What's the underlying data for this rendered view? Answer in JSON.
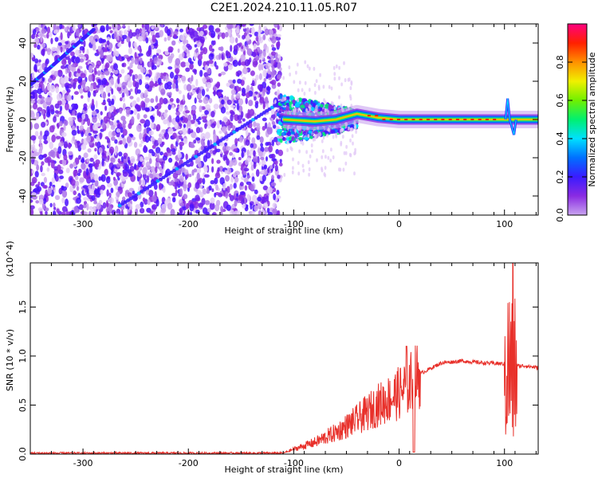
{
  "title": "C2E1.2024.210.11.05.R07",
  "colors": {
    "snr_line": "#e8302a",
    "frame": "#000000"
  },
  "chart_data": [
    {
      "type": "heatmap",
      "xlabel": "Height of straight line (km)",
      "ylabel": "Frequency (Hz)",
      "xlim": [
        -350,
        132
      ],
      "ylim": [
        -50,
        50
      ],
      "xticks": [
        -300,
        -200,
        -100,
        0,
        100
      ],
      "yticks": [
        -40,
        -20,
        0,
        20,
        40
      ],
      "colorbar": {
        "label": "Normalized spectral amplitude",
        "range": [
          0.0,
          1.0
        ],
        "ticks": [
          0.0,
          0.2,
          0.4,
          0.6,
          0.8
        ],
        "tick_labels": [
          "0.0",
          "0.2",
          "0.4",
          "0.6",
          "0.8"
        ]
      },
      "dominant_track": [
        {
          "x": -110,
          "y": 0
        },
        {
          "x": -80,
          "y": -1
        },
        {
          "x": -60,
          "y": 0
        },
        {
          "x": -40,
          "y": 3
        },
        {
          "x": -20,
          "y": 1
        },
        {
          "x": 0,
          "y": 0
        },
        {
          "x": 50,
          "y": 0
        },
        {
          "x": 100,
          "y": 0
        },
        {
          "x": 132,
          "y": 0
        }
      ],
      "diagonal_tracks": [
        {
          "from": {
            "x": -350,
            "y": 18
          },
          "to": {
            "x": -290,
            "y": 47
          }
        },
        {
          "from": {
            "x": -265,
            "y": -45
          },
          "to": {
            "x": -110,
            "y": 10
          }
        }
      ]
    },
    {
      "type": "line",
      "xlabel": "Height of straight line (km)",
      "ylabel": "SNR (10 * v/v)",
      "multiplier": "(x10^4)",
      "xlim": [
        -350,
        132
      ],
      "ylim": [
        0,
        1.95
      ],
      "xticks": [
        -300,
        -200,
        -100,
        0,
        100
      ],
      "yticks": [
        0.0,
        0.5,
        1.0,
        1.5
      ],
      "ytick_labels": [
        "0.0",
        "0.5",
        "1.0",
        "1.5"
      ],
      "envelope": [
        {
          "x": -350,
          "y": 0.01
        },
        {
          "x": -110,
          "y": 0.01
        },
        {
          "x": -100,
          "y": 0.05
        },
        {
          "x": -80,
          "y": 0.12
        },
        {
          "x": -60,
          "y": 0.22
        },
        {
          "x": -40,
          "y": 0.35
        },
        {
          "x": -20,
          "y": 0.5
        },
        {
          "x": 0,
          "y": 0.62
        },
        {
          "x": 10,
          "y": 0.72
        },
        {
          "x": 20,
          "y": 0.82
        },
        {
          "x": 40,
          "y": 0.93
        },
        {
          "x": 60,
          "y": 0.95
        },
        {
          "x": 80,
          "y": 0.93
        },
        {
          "x": 100,
          "y": 0.92
        },
        {
          "x": 105,
          "y": 0.85
        },
        {
          "x": 110,
          "y": 0.9
        },
        {
          "x": 120,
          "y": 0.9
        },
        {
          "x": 132,
          "y": 0.88
        }
      ]
    }
  ]
}
